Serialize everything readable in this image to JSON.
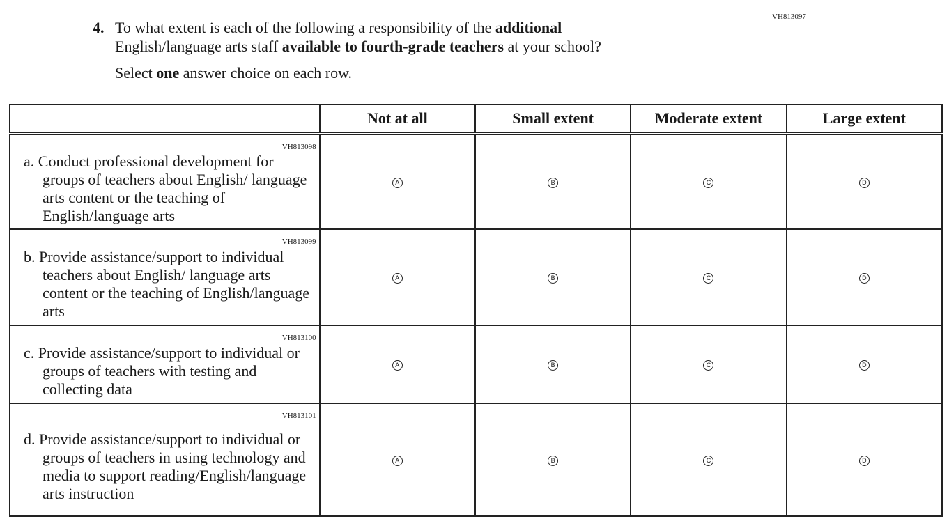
{
  "question": {
    "number": "4.",
    "code": "VH813097",
    "parts": [
      {
        "t": "To what extent is each of the following a responsibility of the ",
        "b": false
      },
      {
        "t": "additional",
        "b": true
      },
      {
        "t": " English/language arts staff ",
        "b": false
      },
      {
        "t": "available to fourth-grade teachers",
        "b": true
      },
      {
        "t": " at your school?",
        "b": false
      }
    ],
    "instruction": {
      "pre": "Select ",
      "bold": "one",
      "post": " answer choice on each row."
    }
  },
  "columns": [
    "Not at all",
    "Small extent",
    "Moderate extent",
    "Large extent"
  ],
  "options": [
    "A",
    "B",
    "C",
    "D"
  ],
  "rows": [
    {
      "code": "VH813098",
      "label": "a. Conduct professional development for groups of teachers about English/ language arts content or the teaching of English/language arts"
    },
    {
      "code": "VH813099",
      "label": "b. Provide assistance/support to individual teachers about English/ language arts content or the teaching of English/language arts"
    },
    {
      "code": "VH813100",
      "label": "c. Provide assistance/support to individual or groups of teachers with testing and collecting data"
    },
    {
      "code": "VH813101",
      "label": "d. Provide assistance/support to individual or groups of teachers in using technology and media to support reading/English/language arts instruction"
    }
  ]
}
